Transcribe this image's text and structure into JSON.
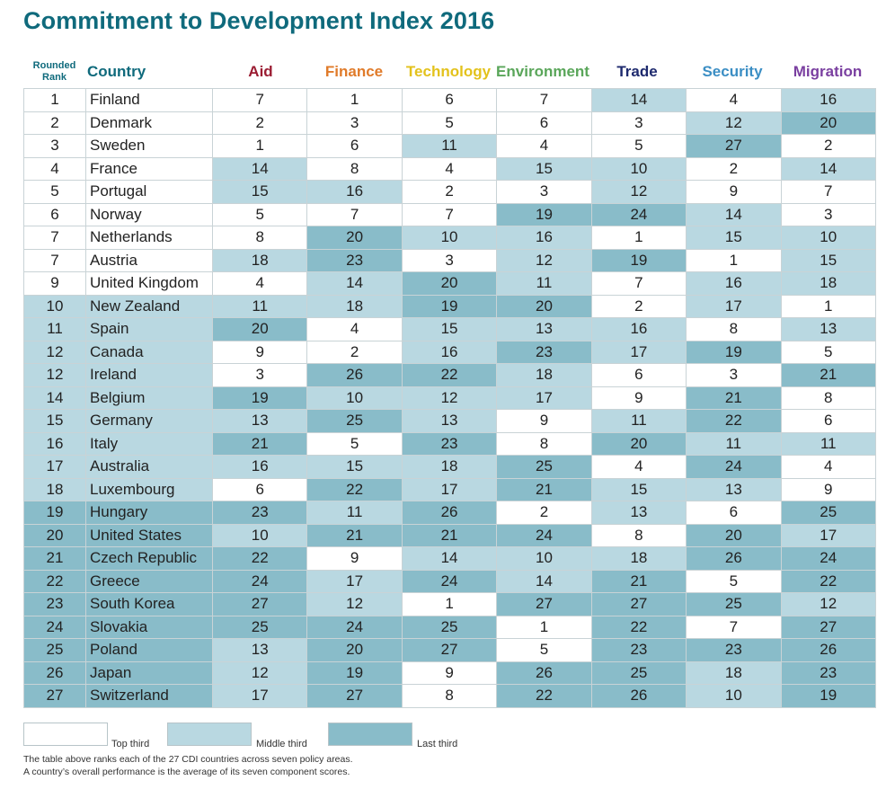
{
  "title": "Commitment to Development Index 2016",
  "headers": {
    "rank_line1": "Rounded",
    "rank_line2": "Rank",
    "country": "Country"
  },
  "colors": {
    "title": "#0f6a7c",
    "top_third": "#ffffff",
    "middle_third": "#b9d8e1",
    "last_third": "#89bcc9"
  },
  "legend": {
    "top": "Top third",
    "middle": "Middle third",
    "last": "Last third"
  },
  "notes": [
    "The table above ranks each of the 27 CDI countries across seven policy areas.",
    "A country’s overall performance is the average of its seven component scores."
  ],
  "chart_data": {
    "type": "table",
    "title": "Commitment to Development Index 2016",
    "columns": [
      {
        "name": "Aid",
        "color": "#9b1c32"
      },
      {
        "name": "Finance",
        "color": "#e07b2a"
      },
      {
        "name": "Technology",
        "color": "#e3c21c"
      },
      {
        "name": "Environment",
        "color": "#5aa65a"
      },
      {
        "name": "Trade",
        "color": "#1e2a6e"
      },
      {
        "name": "Security",
        "color": "#3b8ec4"
      },
      {
        "name": "Migration",
        "color": "#7a3fa0"
      }
    ],
    "tier_rule": "ranks 1-9 top third, 10-18 middle third, 19-27 last third",
    "rows": [
      {
        "rank": "1",
        "country": "Finland",
        "values": [
          7,
          1,
          6,
          7,
          14,
          4,
          16
        ]
      },
      {
        "rank": "2",
        "country": "Denmark",
        "values": [
          2,
          3,
          5,
          6,
          3,
          12,
          20
        ]
      },
      {
        "rank": "3",
        "country": "Sweden",
        "values": [
          1,
          6,
          11,
          4,
          5,
          27,
          2
        ]
      },
      {
        "rank": "4",
        "country": "France",
        "values": [
          14,
          8,
          4,
          15,
          10,
          2,
          14
        ]
      },
      {
        "rank": "5",
        "country": "Portugal",
        "values": [
          15,
          16,
          2,
          3,
          12,
          9,
          7
        ]
      },
      {
        "rank": "6",
        "country": "Norway",
        "values": [
          5,
          7,
          7,
          19,
          24,
          14,
          3
        ]
      },
      {
        "rank": "7",
        "country": "Netherlands",
        "values": [
          8,
          20,
          10,
          16,
          1,
          15,
          10
        ]
      },
      {
        "rank": "7",
        "country": "Austria",
        "values": [
          18,
          23,
          3,
          12,
          19,
          1,
          15
        ]
      },
      {
        "rank": "9",
        "country": "United Kingdom",
        "values": [
          4,
          14,
          20,
          11,
          7,
          16,
          18
        ]
      },
      {
        "rank": "10",
        "country": "New Zealand",
        "values": [
          11,
          18,
          19,
          20,
          2,
          17,
          1
        ]
      },
      {
        "rank": "11",
        "country": "Spain",
        "values": [
          20,
          4,
          15,
          13,
          16,
          8,
          13
        ]
      },
      {
        "rank": "12",
        "country": "Canada",
        "values": [
          9,
          2,
          16,
          23,
          17,
          19,
          5
        ]
      },
      {
        "rank": "12",
        "country": "Ireland",
        "values": [
          3,
          26,
          22,
          18,
          6,
          3,
          21
        ]
      },
      {
        "rank": "14",
        "country": "Belgium",
        "values": [
          19,
          10,
          12,
          17,
          9,
          21,
          8
        ]
      },
      {
        "rank": "15",
        "country": "Germany",
        "values": [
          13,
          25,
          13,
          9,
          11,
          22,
          6
        ]
      },
      {
        "rank": "16",
        "country": "Italy",
        "values": [
          21,
          5,
          23,
          8,
          20,
          11,
          11
        ]
      },
      {
        "rank": "17",
        "country": "Australia",
        "values": [
          16,
          15,
          18,
          25,
          4,
          24,
          4
        ]
      },
      {
        "rank": "18",
        "country": "Luxembourg",
        "values": [
          6,
          22,
          17,
          21,
          15,
          13,
          9
        ]
      },
      {
        "rank": "19",
        "country": "Hungary",
        "values": [
          23,
          11,
          26,
          2,
          13,
          6,
          25
        ]
      },
      {
        "rank": "20",
        "country": "United States",
        "values": [
          10,
          21,
          21,
          24,
          8,
          20,
          17
        ]
      },
      {
        "rank": "21",
        "country": "Czech Republic",
        "values": [
          22,
          9,
          14,
          10,
          18,
          26,
          24
        ]
      },
      {
        "rank": "22",
        "country": "Greece",
        "values": [
          24,
          17,
          24,
          14,
          21,
          5,
          22
        ]
      },
      {
        "rank": "23",
        "country": "South Korea",
        "values": [
          27,
          12,
          1,
          27,
          27,
          25,
          12
        ]
      },
      {
        "rank": "24",
        "country": "Slovakia",
        "values": [
          25,
          24,
          25,
          1,
          22,
          7,
          27
        ]
      },
      {
        "rank": "25",
        "country": "Poland",
        "values": [
          13,
          20,
          27,
          5,
          23,
          23,
          26
        ]
      },
      {
        "rank": "26",
        "country": "Japan",
        "values": [
          12,
          19,
          9,
          26,
          25,
          18,
          23
        ]
      },
      {
        "rank": "27",
        "country": "Switzerland",
        "values": [
          17,
          27,
          8,
          22,
          26,
          10,
          19
        ]
      }
    ]
  }
}
